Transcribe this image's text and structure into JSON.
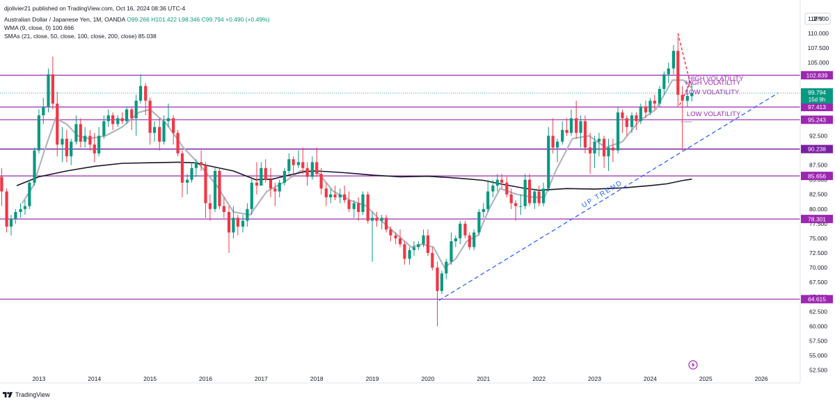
{
  "header": {
    "published": "djolivier21 published on TradingView.com, Oct 16, 2024 08:36 UTC-4",
    "symbol": "Australian Dollar / Japanese Yen, 1M, OANDA",
    "open": "O99.266",
    "high": "H101.422",
    "low": "L98.346",
    "close": "C99.794",
    "change": "+0.490 (+0.49%)",
    "wma": "WMA (9, close, 0)  100.666",
    "smas": "SMAs (21, close, 50, close, 100, close, 200, close)  85.038"
  },
  "footer": {
    "brand": "TradingView"
  },
  "icons": {
    "logo": "tradingview-logo-icon",
    "zap": "lightning-bolt-icon"
  },
  "colors": {
    "up": "#089981",
    "down": "#f23645",
    "level": "#9c27b0",
    "level_dark": "#7b1fa2",
    "trend": "#2962ff",
    "sma": "#131722",
    "wma": "#b2b5be",
    "annotation": "#9c27b0"
  },
  "chart_data": {
    "type": "candlestick",
    "currency": "JPY",
    "x_ticks": [
      "2013",
      "2014",
      "2015",
      "2016",
      "2017",
      "2018",
      "2019",
      "2020",
      "2021",
      "2022",
      "2023",
      "2024",
      "2025",
      "2026"
    ],
    "y_ticks": [
      "112.500",
      "110.000",
      "107.500",
      "105.000",
      "102.500",
      "100.000",
      "97.500",
      "95.000",
      "92.500",
      "90.000",
      "87.500",
      "85.000",
      "82.500",
      "80.000",
      "77.500",
      "75.000",
      "72.500",
      "70.000",
      "67.500",
      "65.000",
      "62.500",
      "60.000",
      "57.500",
      "55.000",
      "52.500"
    ],
    "ylim": [
      51.5,
      114.5
    ],
    "xlim": [
      2012.3,
      2026.7
    ],
    "levels": [
      {
        "value": 102.839,
        "label": "102.839",
        "style": "solid"
      },
      {
        "value": 97.413,
        "label": "97.413",
        "style": "solid"
      },
      {
        "value": 95.243,
        "label": "95.243",
        "style": "solid"
      },
      {
        "value": 90.238,
        "label": "90.238",
        "style": "dark"
      },
      {
        "value": 85.656,
        "label": "85.656",
        "style": "solid"
      },
      {
        "value": 78.301,
        "label": "78.301",
        "style": "solid"
      },
      {
        "value": 64.615,
        "label": "64.615",
        "style": "solid"
      }
    ],
    "last_price": {
      "value": 99.794,
      "label": "99.794",
      "countdown": "15d 9h"
    },
    "trendline": {
      "label": "UP  TREND",
      "from": [
        2020.2,
        64.4
      ],
      "to": [
        2026.3,
        99.8
      ]
    },
    "annotations": [
      "HIGH VOLATILITY",
      "HIGH VOLATILITY",
      "LOW VOLATILITY",
      "LOW VOLATILITY"
    ],
    "candles": [
      [
        2012.25,
        88.5,
        89.5,
        84.6,
        85.5
      ],
      [
        2012.33,
        85.5,
        87.0,
        80.5,
        83.0
      ],
      [
        2012.42,
        83.0,
        83.5,
        76.0,
        77.0
      ],
      [
        2012.5,
        77.0,
        79.0,
        75.5,
        78.3
      ],
      [
        2012.58,
        78.3,
        80.0,
        77.5,
        79.5
      ],
      [
        2012.67,
        79.5,
        81.0,
        78.5,
        80.0
      ],
      [
        2012.75,
        80.0,
        81.5,
        79.0,
        80.5
      ],
      [
        2012.83,
        80.5,
        85.0,
        80.0,
        84.5
      ],
      [
        2012.92,
        84.5,
        90.5,
        84.0,
        90.0
      ],
      [
        2013.0,
        90.0,
        97.0,
        89.5,
        96.0
      ],
      [
        2013.08,
        96.0,
        99.0,
        94.5,
        97.5
      ],
      [
        2013.17,
        97.5,
        104.0,
        96.5,
        103.0
      ],
      [
        2013.25,
        103.0,
        106.0,
        97.0,
        98.0
      ],
      [
        2013.33,
        98.0,
        100.0,
        89.0,
        91.0
      ],
      [
        2013.42,
        91.0,
        94.0,
        88.0,
        92.0
      ],
      [
        2013.5,
        92.0,
        93.5,
        88.0,
        89.0
      ],
      [
        2013.58,
        89.0,
        92.0,
        87.5,
        91.5
      ],
      [
        2013.67,
        91.5,
        96.0,
        91.0,
        94.5
      ],
      [
        2013.75,
        94.5,
        95.5,
        90.5,
        91.5
      ],
      [
        2013.83,
        91.5,
        94.0,
        90.5,
        92.5
      ],
      [
        2013.92,
        92.5,
        93.5,
        90.0,
        91.0
      ],
      [
        2014.0,
        91.0,
        93.0,
        88.0,
        89.5
      ],
      [
        2014.08,
        89.5,
        94.0,
        89.0,
        92.5
      ],
      [
        2014.17,
        92.5,
        96.0,
        92.0,
        95.0
      ],
      [
        2014.25,
        95.0,
        97.0,
        94.0,
        96.0
      ],
      [
        2014.33,
        96.0,
        96.5,
        93.5,
        94.5
      ],
      [
        2014.42,
        94.5,
        96.0,
        94.0,
        95.5
      ],
      [
        2014.5,
        95.5,
        96.5,
        94.5,
        95.0
      ],
      [
        2014.58,
        95.0,
        97.5,
        94.5,
        97.0
      ],
      [
        2014.67,
        97.0,
        97.5,
        93.5,
        95.5
      ],
      [
        2014.75,
        95.5,
        99.5,
        92.5,
        98.5
      ],
      [
        2014.83,
        98.5,
        103.0,
        98.0,
        101.0
      ],
      [
        2014.92,
        101.0,
        101.5,
        96.0,
        98.5
      ],
      [
        2015.0,
        98.5,
        99.0,
        91.0,
        93.0
      ],
      [
        2015.08,
        93.0,
        95.0,
        91.5,
        94.0
      ],
      [
        2015.17,
        94.0,
        95.5,
        90.0,
        91.5
      ],
      [
        2015.25,
        91.5,
        96.0,
        91.0,
        95.0
      ],
      [
        2015.33,
        95.0,
        98.0,
        94.0,
        95.5
      ],
      [
        2015.42,
        95.5,
        96.0,
        91.0,
        93.0
      ],
      [
        2015.5,
        93.0,
        93.5,
        89.0,
        89.5
      ],
      [
        2015.58,
        89.5,
        90.0,
        82.0,
        84.5
      ],
      [
        2015.67,
        84.5,
        86.0,
        82.5,
        85.0
      ],
      [
        2015.75,
        85.0,
        88.0,
        84.5,
        87.0
      ],
      [
        2015.83,
        87.0,
        88.5,
        85.5,
        88.0
      ],
      [
        2015.92,
        88.0,
        90.0,
        86.5,
        87.5
      ],
      [
        2016.0,
        87.5,
        88.0,
        78.5,
        81.0
      ],
      [
        2016.08,
        81.0,
        82.5,
        78.0,
        80.0
      ],
      [
        2016.17,
        80.0,
        87.0,
        79.5,
        86.5
      ],
      [
        2016.25,
        86.5,
        87.0,
        80.0,
        80.5
      ],
      [
        2016.33,
        80.5,
        82.0,
        78.5,
        79.5
      ],
      [
        2016.42,
        79.5,
        80.5,
        72.5,
        76.0
      ],
      [
        2016.5,
        76.0,
        80.5,
        75.0,
        78.5
      ],
      [
        2016.58,
        78.5,
        79.0,
        75.5,
        77.0
      ],
      [
        2016.67,
        77.0,
        79.0,
        76.0,
        78.0
      ],
      [
        2016.75,
        78.0,
        81.0,
        77.0,
        80.0
      ],
      [
        2016.83,
        80.0,
        85.5,
        79.0,
        84.5
      ],
      [
        2016.92,
        84.5,
        88.0,
        82.5,
        84.0
      ],
      [
        2017.0,
        84.0,
        88.0,
        84.0,
        87.0
      ],
      [
        2017.08,
        87.0,
        88.5,
        84.5,
        85.0
      ],
      [
        2017.17,
        85.0,
        87.0,
        82.0,
        83.5
      ],
      [
        2017.25,
        83.5,
        84.5,
        80.5,
        83.0
      ],
      [
        2017.33,
        83.0,
        85.0,
        82.0,
        84.5
      ],
      [
        2017.42,
        84.5,
        87.0,
        84.0,
        86.5
      ],
      [
        2017.5,
        86.5,
        89.5,
        86.0,
        88.5
      ],
      [
        2017.58,
        88.5,
        89.0,
        85.5,
        87.5
      ],
      [
        2017.67,
        87.5,
        90.0,
        87.0,
        88.0
      ],
      [
        2017.75,
        88.0,
        90.5,
        86.0,
        87.0
      ],
      [
        2017.83,
        87.0,
        88.0,
        84.0,
        85.5
      ],
      [
        2017.92,
        85.5,
        89.0,
        85.0,
        88.0
      ],
      [
        2018.0,
        88.0,
        90.5,
        85.5,
        86.0
      ],
      [
        2018.08,
        86.0,
        87.0,
        82.5,
        83.5
      ],
      [
        2018.17,
        83.5,
        84.5,
        80.5,
        82.0
      ],
      [
        2018.25,
        82.0,
        83.5,
        81.0,
        82.5
      ],
      [
        2018.33,
        82.5,
        84.0,
        81.5,
        82.0
      ],
      [
        2018.42,
        82.0,
        83.5,
        81.0,
        82.5
      ],
      [
        2018.5,
        82.5,
        84.0,
        81.0,
        81.5
      ],
      [
        2018.58,
        81.5,
        83.0,
        79.5,
        80.0
      ],
      [
        2018.67,
        80.0,
        81.5,
        78.5,
        81.0
      ],
      [
        2018.75,
        81.0,
        82.0,
        78.0,
        79.5
      ],
      [
        2018.83,
        79.5,
        83.0,
        79.0,
        82.5
      ],
      [
        2018.92,
        82.5,
        83.0,
        77.5,
        78.0
      ],
      [
        2019.0,
        78.0,
        79.5,
        71.0,
        78.5
      ],
      [
        2019.08,
        78.5,
        79.5,
        77.0,
        78.0
      ],
      [
        2019.17,
        78.0,
        79.0,
        76.5,
        78.5
      ],
      [
        2019.25,
        78.5,
        79.0,
        76.0,
        76.5
      ],
      [
        2019.33,
        76.5,
        77.0,
        74.5,
        75.5
      ],
      [
        2019.42,
        75.5,
        76.0,
        74.0,
        75.0
      ],
      [
        2019.5,
        75.0,
        76.5,
        73.5,
        74.0
      ],
      [
        2019.58,
        74.0,
        74.5,
        70.5,
        71.5
      ],
      [
        2019.67,
        71.5,
        73.5,
        70.5,
        73.0
      ],
      [
        2019.75,
        73.0,
        74.5,
        72.0,
        73.5
      ],
      [
        2019.83,
        73.5,
        74.5,
        73.0,
        74.0
      ],
      [
        2019.92,
        74.0,
        76.5,
        73.5,
        75.5
      ],
      [
        2020.0,
        75.5,
        76.5,
        72.0,
        72.5
      ],
      [
        2020.08,
        72.5,
        73.5,
        69.5,
        70.0
      ],
      [
        2020.17,
        70.0,
        71.0,
        60.0,
        66.0
      ],
      [
        2020.25,
        66.0,
        69.5,
        65.5,
        69.0
      ],
      [
        2020.33,
        69.0,
        71.5,
        68.0,
        71.0
      ],
      [
        2020.42,
        71.0,
        76.0,
        70.5,
        74.5
      ],
      [
        2020.5,
        74.5,
        75.5,
        73.5,
        75.0
      ],
      [
        2020.58,
        75.0,
        78.0,
        74.0,
        77.5
      ],
      [
        2020.67,
        77.5,
        78.0,
        75.0,
        75.5
      ],
      [
        2020.75,
        75.5,
        76.0,
        73.0,
        73.5
      ],
      [
        2020.83,
        73.5,
        76.5,
        73.0,
        76.0
      ],
      [
        2020.92,
        76.0,
        80.0,
        75.5,
        79.5
      ],
      [
        2021.0,
        79.5,
        81.0,
        78.5,
        80.0
      ],
      [
        2021.08,
        80.0,
        85.0,
        79.5,
        83.0
      ],
      [
        2021.17,
        83.0,
        85.0,
        82.0,
        84.0
      ],
      [
        2021.25,
        84.0,
        86.0,
        83.0,
        85.0
      ],
      [
        2021.33,
        85.0,
        86.0,
        83.5,
        84.5
      ],
      [
        2021.42,
        84.5,
        85.5,
        82.0,
        82.5
      ],
      [
        2021.5,
        82.5,
        83.5,
        80.0,
        81.0
      ],
      [
        2021.58,
        81.0,
        81.5,
        78.0,
        80.5
      ],
      [
        2021.67,
        80.5,
        82.5,
        79.0,
        80.5
      ],
      [
        2021.75,
        80.5,
        86.0,
        80.0,
        85.0
      ],
      [
        2021.83,
        85.0,
        86.0,
        80.5,
        81.0
      ],
      [
        2021.92,
        81.0,
        83.5,
        80.0,
        83.0
      ],
      [
        2022.0,
        83.0,
        84.0,
        80.5,
        81.0
      ],
      [
        2022.08,
        81.0,
        84.5,
        80.5,
        83.5
      ],
      [
        2022.17,
        83.5,
        94.0,
        83.0,
        92.5
      ],
      [
        2022.25,
        92.5,
        95.5,
        89.5,
        90.5
      ],
      [
        2022.33,
        90.5,
        92.0,
        88.0,
        91.5
      ],
      [
        2022.42,
        91.5,
        95.0,
        91.0,
        93.5
      ],
      [
        2022.5,
        93.5,
        95.5,
        92.5,
        93.0
      ],
      [
        2022.58,
        93.0,
        97.0,
        92.5,
        95.5
      ],
      [
        2022.67,
        95.5,
        98.5,
        92.0,
        93.0
      ],
      [
        2022.75,
        93.0,
        96.0,
        90.5,
        95.0
      ],
      [
        2022.83,
        95.0,
        96.0,
        89.5,
        90.5
      ],
      [
        2022.92,
        90.5,
        93.0,
        86.0,
        89.5
      ],
      [
        2023.0,
        89.5,
        92.5,
        87.0,
        91.5
      ],
      [
        2023.08,
        91.5,
        93.0,
        89.0,
        92.0
      ],
      [
        2023.17,
        92.0,
        92.5,
        87.0,
        89.0
      ],
      [
        2023.25,
        89.0,
        92.0,
        86.5,
        90.5
      ],
      [
        2023.33,
        90.5,
        92.0,
        88.0,
        90.0
      ],
      [
        2023.42,
        90.0,
        97.5,
        89.5,
        96.5
      ],
      [
        2023.5,
        96.5,
        97.0,
        93.0,
        95.5
      ],
      [
        2023.58,
        95.5,
        96.0,
        92.5,
        94.0
      ],
      [
        2023.67,
        94.0,
        96.5,
        93.0,
        96.0
      ],
      [
        2023.75,
        96.0,
        96.5,
        93.5,
        95.0
      ],
      [
        2023.83,
        95.0,
        98.0,
        94.5,
        97.5
      ],
      [
        2023.92,
        97.5,
        98.5,
        95.5,
        96.5
      ],
      [
        2024.0,
        96.5,
        99.0,
        96.0,
        98.5
      ],
      [
        2024.08,
        98.5,
        99.5,
        97.0,
        98.0
      ],
      [
        2024.17,
        98.0,
        101.0,
        97.5,
        100.5
      ],
      [
        2024.25,
        100.5,
        103.5,
        99.5,
        103.0
      ],
      [
        2024.33,
        103.0,
        105.0,
        101.5,
        104.0
      ],
      [
        2024.42,
        104.0,
        108.0,
        103.0,
        107.0
      ],
      [
        2024.5,
        107.0,
        109.5,
        97.5,
        99.5
      ],
      [
        2024.58,
        99.5,
        101.0,
        90.0,
        98.5
      ],
      [
        2024.67,
        98.5,
        101.0,
        97.5,
        99.3
      ],
      [
        2024.75,
        99.266,
        101.422,
        98.346,
        99.794
      ]
    ],
    "sma_series": [
      [
        2012.6,
        84.0
      ],
      [
        2013.0,
        85.5
      ],
      [
        2013.5,
        86.5
      ],
      [
        2014.0,
        87.3
      ],
      [
        2014.5,
        87.8
      ],
      [
        2015.0,
        87.9
      ],
      [
        2015.5,
        88.0
      ],
      [
        2015.8,
        87.9
      ],
      [
        2016.0,
        87.5
      ],
      [
        2016.5,
        86.5
      ],
      [
        2016.9,
        85.0
      ],
      [
        2017.2,
        85.1
      ],
      [
        2017.5,
        85.8
      ],
      [
        2017.8,
        86.4
      ],
      [
        2018.0,
        86.5
      ],
      [
        2018.5,
        86.2
      ],
      [
        2019.0,
        85.8
      ],
      [
        2019.5,
        85.5
      ],
      [
        2020.0,
        85.6
      ],
      [
        2020.5,
        85.3
      ],
      [
        2021.0,
        84.9
      ],
      [
        2021.3,
        84.3
      ],
      [
        2021.7,
        83.6
      ],
      [
        2022.0,
        83.2
      ],
      [
        2022.5,
        83.5
      ],
      [
        2023.0,
        83.4
      ],
      [
        2023.5,
        83.6
      ],
      [
        2024.0,
        84.0
      ],
      [
        2024.3,
        84.3
      ],
      [
        2024.6,
        84.9
      ],
      [
        2024.75,
        85.1
      ]
    ],
    "wma_series": [
      [
        2012.7,
        81.0
      ],
      [
        2012.9,
        84.0
      ],
      [
        2013.1,
        90.0
      ],
      [
        2013.3,
        95.5
      ],
      [
        2013.5,
        94.5
      ],
      [
        2013.7,
        92.5
      ],
      [
        2013.9,
        92.0
      ],
      [
        2014.2,
        92.5
      ],
      [
        2014.5,
        94.0
      ],
      [
        2014.8,
        96.5
      ],
      [
        2015.0,
        97.0
      ],
      [
        2015.3,
        94.5
      ],
      [
        2015.6,
        90.5
      ],
      [
        2015.9,
        87.5
      ],
      [
        2016.2,
        84.0
      ],
      [
        2016.5,
        79.5
      ],
      [
        2016.8,
        79.0
      ],
      [
        2017.1,
        83.0
      ],
      [
        2017.4,
        84.5
      ],
      [
        2017.7,
        86.5
      ],
      [
        2018.0,
        86.5
      ],
      [
        2018.3,
        83.0
      ],
      [
        2018.6,
        81.5
      ],
      [
        2018.9,
        80.5
      ],
      [
        2019.1,
        78.5
      ],
      [
        2019.4,
        76.0
      ],
      [
        2019.7,
        73.5
      ],
      [
        2019.9,
        74.0
      ],
      [
        2020.1,
        73.5
      ],
      [
        2020.3,
        70.0
      ],
      [
        2020.5,
        71.5
      ],
      [
        2020.7,
        74.5
      ],
      [
        2020.9,
        75.5
      ],
      [
        2021.1,
        80.0
      ],
      [
        2021.3,
        83.5
      ],
      [
        2021.6,
        82.5
      ],
      [
        2021.9,
        82.0
      ],
      [
        2022.1,
        82.0
      ],
      [
        2022.3,
        86.5
      ],
      [
        2022.6,
        92.0
      ],
      [
        2022.9,
        92.5
      ],
      [
        2023.2,
        90.5
      ],
      [
        2023.5,
        91.5
      ],
      [
        2023.8,
        95.0
      ],
      [
        2024.1,
        97.0
      ],
      [
        2024.4,
        102.0
      ],
      [
        2024.6,
        102.0
      ],
      [
        2024.75,
        100.7
      ]
    ]
  }
}
